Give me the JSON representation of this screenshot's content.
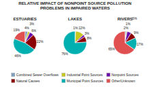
{
  "chart_data": {
    "type": "pie",
    "title": "RELATIVE IMPACT OF NONPOINT SOURCE POLLUTION\nPROBLEMS IN IMPAIRED WATERS",
    "categories": [
      "Combined Sewer Overflows",
      "Industrial Point Sources",
      "Nonpoint Sources",
      "Natural Causes",
      "Municipal Point Sources",
      "Other/Unknown"
    ],
    "colors": [
      "#7f9fbe",
      "#c8c820",
      "#6a0dad",
      "#8b0000",
      "#00b0b0",
      "#e05050"
    ],
    "legend": "bottom",
    "data_labels": true,
    "series": [
      {
        "name": "ESTUARIES",
        "values": [
          4,
          3,
          6,
          22,
          46,
          19
        ],
        "value_labels": [
          "4%",
          "3%",
          "6%",
          "22%",
          "46%",
          "19%"
        ]
      },
      {
        "name": "LAKES",
        "values": [
          1,
          12,
          3,
          8,
          76,
          0
        ],
        "value_labels": [
          "1%",
          "12%",
          "3%",
          "8%",
          "76%",
          null
        ]
      },
      {
        "name": "RIVERS",
        "values": [
          2,
          1,
          6,
          9,
          17,
          65
        ],
        "value_labels": [
          "2%",
          "1%",
          "6%",
          "9%",
          "17%",
          "65%"
        ]
      }
    ]
  }
}
